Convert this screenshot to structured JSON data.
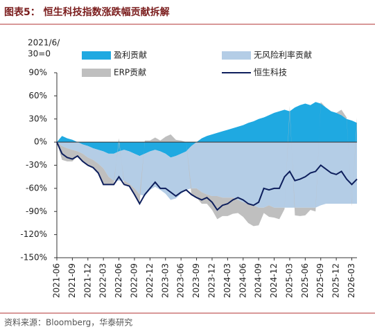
{
  "chart_data": {
    "type": "stacked-area-line",
    "title": "图表5： 恒生科技指数涨跌幅贡献拆解",
    "annotation_lines": [
      "2021/6/",
      "30=0"
    ],
    "source": "资料来源：Bloomberg，华泰研究",
    "x": [
      "2021-06",
      "2021-07",
      "2021-08",
      "2021-09",
      "2021-10",
      "2021-11",
      "2021-12",
      "2022-01",
      "2022-02",
      "2022-03",
      "2022-04",
      "2022-05",
      "2022-06",
      "2022-07",
      "2022-08",
      "2022-09",
      "2022-10",
      "2022-11",
      "2022-12",
      "2023-01",
      "2023-02",
      "2023-03",
      "2023-04",
      "2023-05",
      "2023-06",
      "2023-07",
      "2023-08",
      "2023-09",
      "2023-10",
      "2023-11",
      "2023-12",
      "2024-01",
      "2024-02",
      "2024-03",
      "2024-04",
      "2024-05",
      "2024-06",
      "2024-07",
      "2024-08",
      "2024-09",
      "2024-10",
      "2024-11",
      "2024-12",
      "2025-01",
      "2025-02",
      "2025-03",
      "2025-04",
      "2025-05",
      "2025-06",
      "2025-07",
      "2025-08",
      "2025-09",
      "2025-10",
      "2025-11",
      "2025-12",
      "2026-01",
      "2026-02",
      "2026-03",
      "2026-04"
    ],
    "xticks": [
      "2021-06",
      "2021-09",
      "2021-12",
      "2022-03",
      "2022-06",
      "2022-09",
      "2022-12",
      "2023-03",
      "2023-06",
      "2023-09",
      "2023-12",
      "2024-03",
      "2024-06",
      "2024-09",
      "2024-12",
      "2025-03",
      "2025-06",
      "2025-09",
      "2025-12",
      "2026-03"
    ],
    "series": [
      {
        "name": "盈利贡献",
        "color": "#1fa9e1",
        "kind": "area",
        "values": [
          0,
          8,
          5,
          3,
          0,
          -3,
          -5,
          -8,
          -10,
          -12,
          -15,
          -15,
          -12,
          -10,
          -12,
          -15,
          -18,
          -15,
          -12,
          -10,
          -12,
          -15,
          -20,
          -18,
          -15,
          -12,
          -5,
          0,
          5,
          8,
          10,
          12,
          14,
          16,
          18,
          20,
          22,
          25,
          27,
          30,
          32,
          35,
          38,
          40,
          42,
          40,
          45,
          48,
          50,
          48,
          52,
          50,
          45,
          40,
          38,
          35,
          30,
          28,
          25
        ]
      },
      {
        "name": "无风险利率贡献",
        "color": "#b4cde6",
        "kind": "area",
        "values": [
          0,
          -5,
          -8,
          -10,
          -12,
          -12,
          -15,
          -15,
          -18,
          -22,
          -30,
          -35,
          -38,
          -40,
          -42,
          -45,
          -50,
          -55,
          -50,
          -48,
          -50,
          -52,
          -55,
          -55,
          -52,
          -50,
          -55,
          -60,
          -65,
          -68,
          -70,
          -70,
          -72,
          -72,
          -72,
          -75,
          -78,
          -80,
          -82,
          -85,
          -85,
          -82,
          -85,
          -85,
          -85,
          -85,
          -85,
          -85,
          -85,
          -85,
          -85,
          -82,
          -80,
          -80,
          -80,
          -80,
          -80,
          -80,
          -80
        ]
      },
      {
        "name": "ERP贡献",
        "color": "#bfbfbf",
        "kind": "area",
        "values": [
          0,
          -18,
          -17,
          -15,
          -6,
          -10,
          -10,
          -10,
          -12,
          -21,
          -10,
          -5,
          5,
          -5,
          -3,
          -8,
          -12,
          2,
          2,
          6,
          2,
          7,
          10,
          3,
          2,
          0,
          -8,
          -12,
          -15,
          -12,
          -18,
          -30,
          -24,
          -24,
          -21,
          -17,
          -19,
          -25,
          -27,
          -23,
          -7,
          -15,
          -13,
          -15,
          -2,
          7,
          -10,
          -11,
          -10,
          -3,
          -5,
          2,
          0,
          0,
          0,
          7,
          2,
          -3,
          7
        ]
      },
      {
        "name": "恒生科技",
        "color": "#0d1e5c",
        "kind": "line",
        "values": [
          0,
          -15,
          -20,
          -22,
          -18,
          -25,
          -30,
          -33,
          -40,
          -55,
          -55,
          -55,
          -45,
          -55,
          -57,
          -68,
          -80,
          -68,
          -60,
          -52,
          -60,
          -60,
          -65,
          -70,
          -65,
          -62,
          -68,
          -72,
          -75,
          -72,
          -78,
          -88,
          -82,
          -80,
          -75,
          -72,
          -75,
          -80,
          -82,
          -78,
          -60,
          -62,
          -60,
          -60,
          -45,
          -38,
          -50,
          -48,
          -45,
          -40,
          -38,
          -30,
          -35,
          -40,
          -42,
          -38,
          -48,
          -55,
          -48
        ]
      }
    ],
    "ylim": [
      -150,
      90
    ],
    "yticks": [
      {
        "value": -150,
        "label": "-150%"
      },
      {
        "value": -120,
        "label": "-120%"
      },
      {
        "value": -90,
        "label": "-90%"
      },
      {
        "value": -60,
        "label": "-60%"
      },
      {
        "value": -30,
        "label": "-30%"
      },
      {
        "value": 0,
        "label": "0%"
      },
      {
        "value": 30,
        "label": "30%"
      },
      {
        "value": 60,
        "label": "60%"
      },
      {
        "value": 90,
        "label": "90%"
      }
    ],
    "grid": false
  }
}
